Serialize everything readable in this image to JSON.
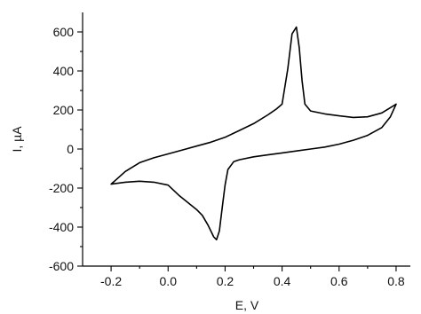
{
  "chart_data": {
    "type": "line",
    "title": "",
    "xlabel": "E, V",
    "ylabel": "I, µA",
    "xlim": [
      -0.3,
      0.85
    ],
    "ylim": [
      -600,
      700
    ],
    "x_ticks": [
      -0.2,
      0.0,
      0.2,
      0.4,
      0.6,
      0.8
    ],
    "x_tick_labels": [
      "-0.2",
      "0.0",
      "0.2",
      "0.4",
      "0.6",
      "0.8"
    ],
    "y_ticks": [
      -600,
      -400,
      -200,
      0,
      200,
      400,
      600
    ],
    "y_tick_labels": [
      "-600",
      "-400",
      "-200",
      "0",
      "200",
      "400",
      "600"
    ],
    "grid": false,
    "series": [
      {
        "x": [
          -0.2,
          -0.15,
          -0.1,
          -0.05,
          0.0,
          0.05,
          0.1,
          0.15,
          0.2,
          0.25,
          0.3,
          0.35,
          0.38,
          0.4,
          0.42,
          0.435,
          0.45,
          0.46,
          0.47,
          0.48,
          0.5,
          0.55,
          0.6,
          0.65,
          0.7,
          0.75,
          0.8,
          0.78,
          0.75,
          0.7,
          0.65,
          0.6,
          0.55,
          0.5,
          0.45,
          0.4,
          0.35,
          0.3,
          0.25,
          0.23,
          0.21,
          0.2,
          0.19,
          0.18,
          0.17,
          0.16,
          0.14,
          0.12,
          0.1,
          0.07,
          0.04,
          0.0,
          -0.05,
          -0.1,
          -0.15,
          -0.2
        ],
        "y": [
          -180,
          -115,
          -70,
          -45,
          -25,
          -5,
          15,
          35,
          60,
          95,
          130,
          175,
          205,
          230,
          410,
          590,
          625,
          520,
          350,
          230,
          195,
          180,
          170,
          162,
          165,
          185,
          230,
          165,
          110,
          70,
          45,
          25,
          10,
          0,
          -10,
          -20,
          -30,
          -40,
          -55,
          -65,
          -105,
          -185,
          -300,
          -420,
          -465,
          -450,
          -390,
          -340,
          -310,
          -275,
          -240,
          -185,
          -170,
          -165,
          -170,
          -180
        ]
      }
    ]
  }
}
